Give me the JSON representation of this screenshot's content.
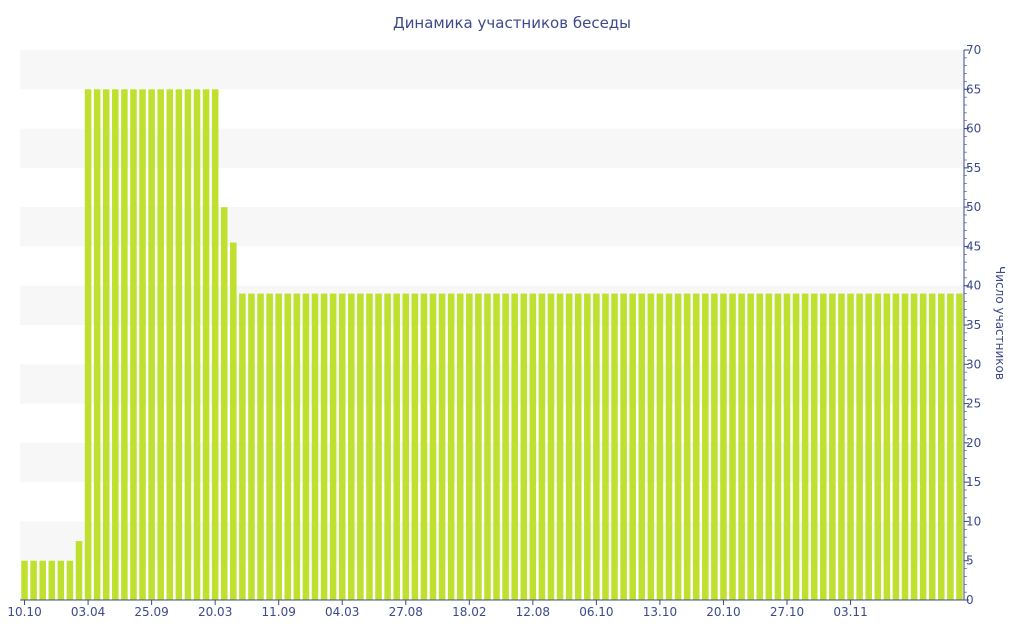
{
  "chart_data": {
    "type": "bar",
    "title": "Динамика участников беседы",
    "xlabel": "",
    "ylabel": "Число участников",
    "ylim": [
      0,
      70
    ],
    "yticks": [
      0,
      5,
      10,
      15,
      20,
      25,
      30,
      35,
      40,
      45,
      50,
      55,
      60,
      65,
      70
    ],
    "y_axis_position": "right",
    "grid": "alternating horizontal bands",
    "legend": "none",
    "bar_color": "#bfe02e",
    "band_color": "#f7f7f7",
    "axis_color": "#3b4a8a",
    "x_tick_labels": [
      {
        "index": 0,
        "label": "10.10"
      },
      {
        "index": 7,
        "label": "03.04"
      },
      {
        "index": 14,
        "label": "25.09"
      },
      {
        "index": 21,
        "label": "20.03"
      },
      {
        "index": 28,
        "label": "11.09"
      },
      {
        "index": 35,
        "label": "04.03"
      },
      {
        "index": 42,
        "label": "27.08"
      },
      {
        "index": 49,
        "label": "18.02"
      },
      {
        "index": 56,
        "label": "12.08"
      },
      {
        "index": 63,
        "label": "06.10"
      },
      {
        "index": 70,
        "label": "13.10"
      },
      {
        "index": 77,
        "label": "20.10"
      },
      {
        "index": 84,
        "label": "27.10"
      },
      {
        "index": 91,
        "label": "03.11"
      }
    ],
    "values": [
      5,
      5,
      5,
      5,
      5,
      5,
      7.5,
      65,
      65,
      65,
      65,
      65,
      65,
      65,
      65,
      65,
      65,
      65,
      65,
      65,
      65,
      65,
      50,
      45.5,
      39,
      39,
      39,
      39,
      39,
      39,
      39,
      39,
      39,
      39,
      39,
      39,
      39,
      39,
      39,
      39,
      39,
      39,
      39,
      39,
      39,
      39,
      39,
      39,
      39,
      39,
      39,
      39,
      39,
      39,
      39,
      39,
      39,
      39,
      39,
      39,
      39,
      39,
      39,
      39,
      39,
      39,
      39,
      39,
      39,
      39,
      39,
      39,
      39,
      39,
      39,
      39,
      39,
      39,
      39,
      39,
      39,
      39,
      39,
      39,
      39,
      39,
      39,
      39,
      39,
      39,
      39,
      39,
      39,
      39,
      39,
      39,
      39,
      39,
      39,
      39,
      39,
      39,
      39,
      39
    ]
  }
}
